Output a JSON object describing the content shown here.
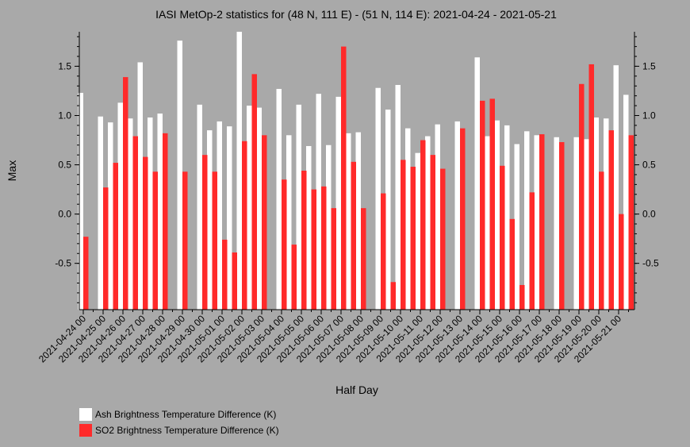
{
  "chart_data": {
    "type": "bar",
    "title": "IASI MetOp-2 statistics for (48 N, 111 E) - (51 N, 114 E): 2021-04-24 - 2021-05-21",
    "xlabel": "Half Day",
    "ylabel": "Max",
    "ylim": [
      -0.97,
      1.85
    ],
    "yticks": [
      -0.5,
      0.0,
      0.5,
      1.0,
      1.5
    ],
    "ytick_labels": [
      "-0.5",
      "0.0",
      "0.5",
      "1.0",
      "1.5"
    ],
    "xtick_labels": [
      "2021-04-24 00",
      "2021-04-25 00",
      "2021-04-26 00",
      "2021-04-27 00",
      "2021-04-28 00",
      "2021-04-29 00",
      "2021-04-30 00",
      "2021-05-01 00",
      "2021-05-02 00",
      "2021-05-03 00",
      "2021-05-04 00",
      "2021-05-05 00",
      "2021-05-06 00",
      "2021-05-07 00",
      "2021-05-08 00",
      "2021-05-09 00",
      "2021-05-10 00",
      "2021-05-11 00",
      "2021-05-12 00",
      "2021-05-13 00",
      "2021-05-14 00",
      "2021-05-15 00",
      "2021-05-16 00",
      "2021-05-17 00",
      "2021-05-18 00",
      "2021-05-19 00",
      "2021-05-20 00",
      "2021-05-21 00"
    ],
    "grid": false,
    "legend_position": "bottom-left",
    "series": [
      {
        "name": "Ash Brightness Temperature Difference (K)",
        "color": "#ffffff",
        "values": [
          1.23,
          null,
          0.99,
          0.93,
          1.13,
          0.97,
          1.54,
          0.98,
          1.02,
          null,
          1.76,
          null,
          1.11,
          0.85,
          0.94,
          0.89,
          1.85,
          1.1,
          1.08,
          null,
          1.27,
          0.8,
          1.11,
          0.69,
          1.22,
          0.7,
          1.19,
          0.82,
          0.83,
          null,
          1.28,
          1.06,
          1.31,
          0.87,
          0.62,
          0.79,
          0.91,
          null,
          0.94,
          null,
          1.59,
          0.79,
          0.95,
          0.9,
          0.71,
          0.84,
          0.8,
          null,
          0.78,
          null,
          0.78,
          0.76,
          0.98,
          0.97,
          1.51,
          1.21
        ]
      },
      {
        "name": "SO2 Brightness Temperature Difference (K)",
        "color": "#ff2a2a",
        "values": [
          -0.23,
          null,
          0.27,
          0.52,
          1.39,
          0.79,
          0.58,
          0.43,
          0.82,
          null,
          0.43,
          null,
          0.6,
          0.43,
          -0.26,
          -0.39,
          0.74,
          1.42,
          0.8,
          null,
          0.35,
          -0.31,
          0.44,
          0.25,
          0.28,
          0.06,
          1.7,
          0.53,
          0.06,
          null,
          0.21,
          -0.69,
          0.55,
          0.48,
          0.75,
          0.6,
          0.46,
          null,
          0.87,
          null,
          1.15,
          1.17,
          0.49,
          -0.05,
          -0.72,
          0.22,
          0.81,
          null,
          0.73,
          null,
          1.32,
          1.52,
          0.43,
          0.85,
          0.0,
          0.8
        ]
      }
    ]
  }
}
